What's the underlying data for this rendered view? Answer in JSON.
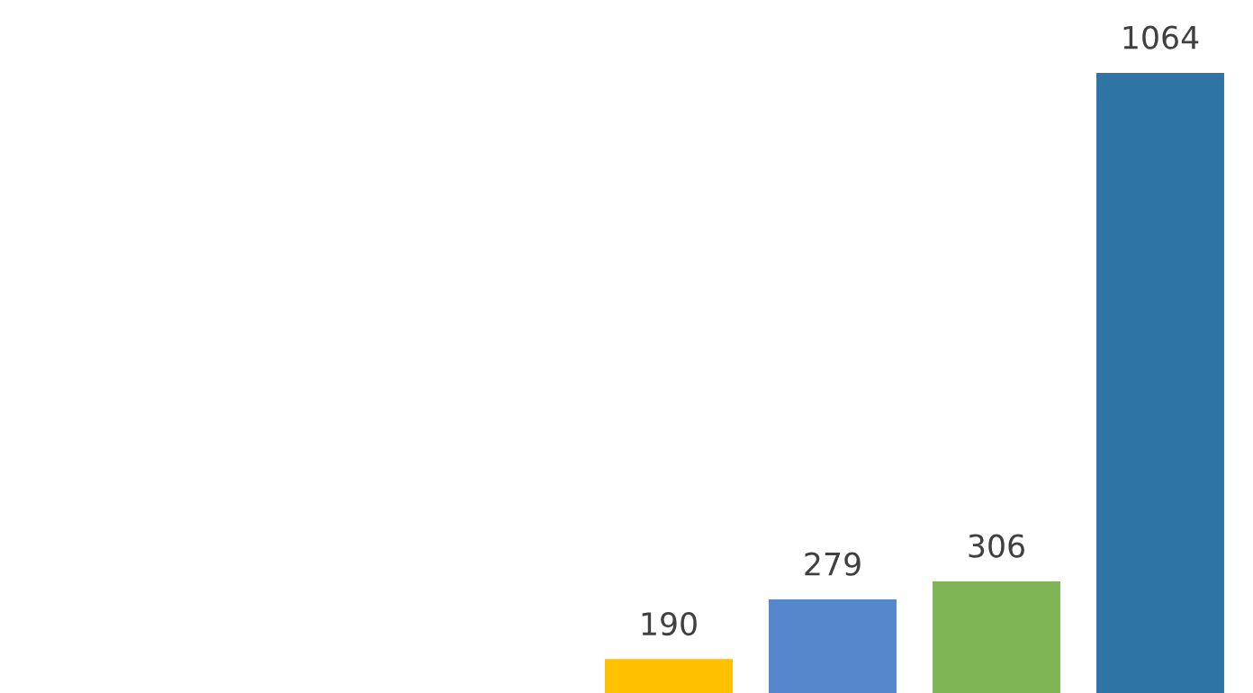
{
  "chart_data": {
    "type": "bar",
    "categories": [
      null,
      null,
      null,
      null
    ],
    "values": [
      190,
      279,
      306,
      1064
    ],
    "colors": [
      "#ffc000",
      "#5687cc",
      "#80b556",
      "#2e74a4"
    ],
    "data_labels": true
  }
}
